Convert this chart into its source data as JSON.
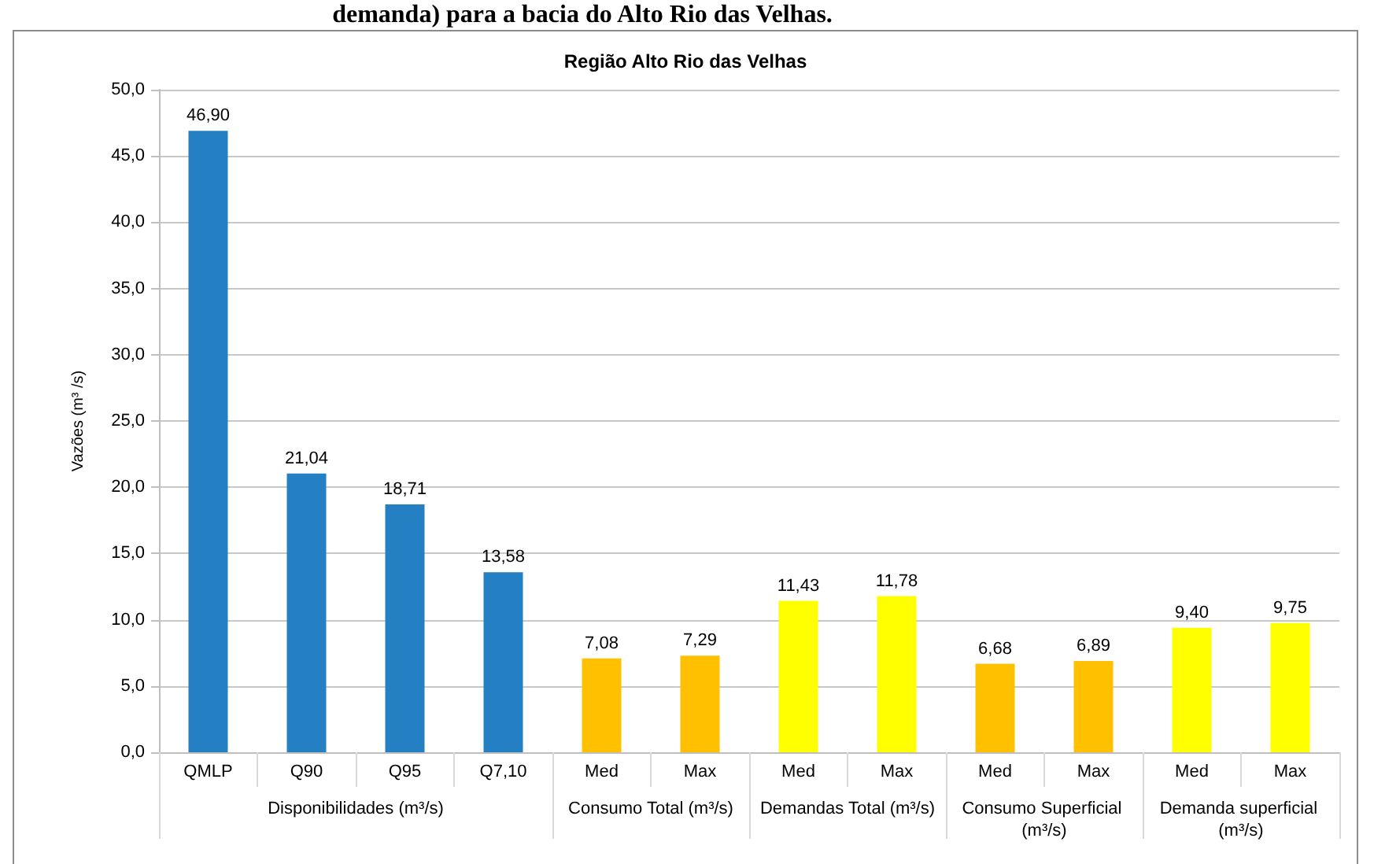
{
  "chart_data": {
    "type": "bar",
    "title": "Região Alto Rio das Velhas",
    "ylabel": "Vazões (m³ /s)",
    "categories": [
      "QMLP",
      "Q90",
      "Q95",
      "Q7,10",
      "Med",
      "Max",
      "Med",
      "Max",
      "Med",
      "Max",
      "Med",
      "Max"
    ],
    "values": [
      46.9,
      21.04,
      18.71,
      13.58,
      7.08,
      7.29,
      11.43,
      11.78,
      6.68,
      6.89,
      9.4,
      9.75
    ],
    "colors": [
      "#2580c3",
      "#2580c3",
      "#2580c3",
      "#2580c3",
      "#ffc000",
      "#ffc000",
      "#ffff00",
      "#ffff00",
      "#ffc000",
      "#ffc000",
      "#ffff00",
      "#ffff00"
    ],
    "value_labels": [
      "46,90",
      "21,04",
      "18,71",
      "13,58",
      "7,08",
      "7,29",
      "11,43",
      "11,78",
      "6,68",
      "6,89",
      "9,40",
      "9,75"
    ],
    "ylim": [
      0,
      50
    ],
    "yticks": [
      {
        "value": 0,
        "label": "0,0"
      },
      {
        "value": 5,
        "label": "5,0"
      },
      {
        "value": 10,
        "label": "10,0"
      },
      {
        "value": 15,
        "label": "15,0"
      },
      {
        "value": 20,
        "label": "20,0"
      },
      {
        "value": 25,
        "label": "25,0"
      },
      {
        "value": 30,
        "label": "30,0"
      },
      {
        "value": 35,
        "label": "35,0"
      },
      {
        "value": 40,
        "label": "40,0"
      },
      {
        "value": 45,
        "label": "45,0"
      },
      {
        "value": 50,
        "label": "50,0"
      }
    ],
    "grid": "y",
    "annotations": [
      "Disponibilidades (m³/s)",
      "Consumo Total (m³/s)",
      "Demandas Total (m³/s)",
      "Consumo Superficial (m³/s)",
      "Demanda superficial (m³/s)",
      "demanda) para a bacia do Alto Rio das Velhas."
    ]
  }
}
